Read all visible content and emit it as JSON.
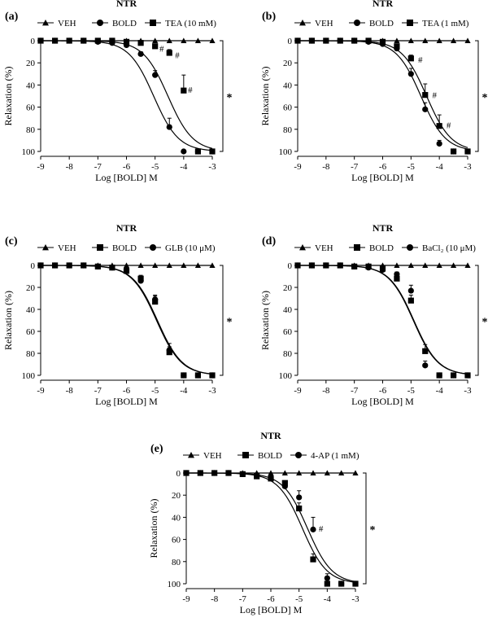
{
  "chart_data": [
    {
      "type": "line",
      "panel_label": "(a)",
      "title": "NTR",
      "xlabel": "Log [BOLD] M",
      "ylabel": "Relaxation (%)",
      "xlim": [
        -9,
        -3
      ],
      "ylim": [
        0,
        100
      ],
      "y_inverted": true,
      "xticks": [
        "-9",
        "-8",
        "-7",
        "-6",
        "-5",
        "-4",
        "-3"
      ],
      "yticks": [
        "0",
        "20",
        "40",
        "60",
        "80",
        "100"
      ],
      "series": [
        {
          "name": "VEH",
          "marker": "triangle",
          "x": [
            -9,
            -8.5,
            -8,
            -7.5,
            -7,
            -6.5,
            -6,
            -5.5,
            -5,
            -4.5,
            -4,
            -3.5,
            -3
          ],
          "y": [
            0,
            0,
            0,
            0,
            0,
            0,
            0,
            0,
            0,
            0,
            0,
            0,
            0
          ],
          "ec50": null
        },
        {
          "name": "BOLD",
          "marker": "circle",
          "x": [
            -9,
            -8.5,
            -8,
            -7.5,
            -7,
            -6.5,
            -6,
            -5.5,
            -5,
            -4.5,
            -4,
            -3.5,
            -3
          ],
          "y": [
            0,
            0,
            0,
            0,
            1,
            2,
            4,
            12,
            31,
            78,
            100,
            100,
            100
          ],
          "err": [
            0,
            0,
            0,
            0,
            0,
            0,
            1,
            2,
            4,
            8,
            0,
            0,
            0
          ],
          "ec50": -5.05
        },
        {
          "name": "TEA (10 mM)",
          "marker": "square",
          "x": [
            -9,
            -8.5,
            -8,
            -7.5,
            -7,
            -6.5,
            -6,
            -5.5,
            -5,
            -4.5,
            -4,
            -3.5,
            -3
          ],
          "y": [
            0,
            0,
            0,
            0,
            0,
            0,
            1,
            2,
            5,
            11,
            45,
            100,
            100
          ],
          "err": [
            0,
            0,
            0,
            0,
            0,
            0,
            0,
            1,
            2,
            3,
            14,
            0,
            0
          ],
          "ec50": -4.55
        }
      ],
      "annotations": [
        {
          "text": "#",
          "x": -4.85,
          "y": 7
        },
        {
          "text": "#",
          "x": -4.3,
          "y": 13
        },
        {
          "text": "#",
          "x": -3.85,
          "y": 44
        }
      ],
      "significance": "*"
    },
    {
      "type": "line",
      "panel_label": "(b)",
      "title": "NTR",
      "xlabel": "Log [BOLD] M",
      "ylabel": "Relaxation (%)",
      "xlim": [
        -9,
        -3
      ],
      "ylim": [
        0,
        100
      ],
      "y_inverted": true,
      "xticks": [
        "-9",
        "-8",
        "-7",
        "-6",
        "-5",
        "-4",
        "-3"
      ],
      "yticks": [
        "0",
        "20",
        "40",
        "60",
        "80",
        "100"
      ],
      "series": [
        {
          "name": "VEH",
          "marker": "triangle",
          "x": [
            -9,
            -8.5,
            -8,
            -7.5,
            -7,
            -6.5,
            -6,
            -5.5,
            -5,
            -4.5,
            -4,
            -3.5,
            -3
          ],
          "y": [
            0,
            0,
            0,
            0,
            0,
            0,
            0,
            0,
            0,
            0,
            0,
            0,
            0
          ],
          "ec50": null
        },
        {
          "name": "BOLD",
          "marker": "circle",
          "x": [
            -9,
            -8.5,
            -8,
            -7.5,
            -7,
            -6.5,
            -6,
            -5.5,
            -5,
            -4.5,
            -4,
            -3.5,
            -3
          ],
          "y": [
            0,
            0,
            0,
            0,
            0,
            1,
            3,
            7,
            30,
            62,
            93,
            100,
            100
          ],
          "err": [
            0,
            0,
            0,
            0,
            0,
            0,
            1,
            2,
            5,
            6,
            3,
            0,
            0
          ],
          "ec50": -4.65
        },
        {
          "name": "TEA (1 mM)",
          "marker": "square",
          "x": [
            -9,
            -8.5,
            -8,
            -7.5,
            -7,
            -6.5,
            -6,
            -5.5,
            -5,
            -4.5,
            -4,
            -3.5,
            -3
          ],
          "y": [
            0,
            0,
            0,
            0,
            0,
            0,
            1,
            5,
            16,
            49,
            77,
            100,
            100
          ],
          "err": [
            0,
            0,
            0,
            0,
            0,
            0,
            0,
            2,
            3,
            10,
            10,
            0,
            0
          ],
          "ec50": -4.45
        }
      ],
      "annotations": [
        {
          "text": "#",
          "x": -4.75,
          "y": 17
        },
        {
          "text": "#",
          "x": -4.25,
          "y": 49
        },
        {
          "text": "#",
          "x": -3.75,
          "y": 76
        }
      ],
      "significance": "*"
    },
    {
      "type": "line",
      "panel_label": "(c)",
      "title": "NTR",
      "xlabel": "Log [BOLD] M",
      "ylabel": "Relaxation (%)",
      "xlim": [
        -9,
        -3
      ],
      "ylim": [
        0,
        100
      ],
      "y_inverted": true,
      "xticks": [
        "-9",
        "-8",
        "-7",
        "-6",
        "-5",
        "-4",
        "-3"
      ],
      "yticks": [
        "0",
        "20",
        "40",
        "60",
        "80",
        "100"
      ],
      "series": [
        {
          "name": "VEH",
          "marker": "triangle",
          "x": [
            -9,
            -8.5,
            -8,
            -7.5,
            -7,
            -6.5,
            -6,
            -5.5,
            -5,
            -4.5,
            -4,
            -3.5,
            -3
          ],
          "y": [
            0,
            0,
            0,
            0,
            0,
            0,
            0,
            0,
            0,
            0,
            0,
            0,
            0
          ],
          "ec50": null
        },
        {
          "name": "BOLD",
          "marker": "square",
          "x": [
            -9,
            -8.5,
            -8,
            -7.5,
            -7,
            -6.5,
            -6,
            -5.5,
            -5,
            -4.5,
            -4,
            -3.5,
            -3
          ],
          "y": [
            0,
            0,
            0,
            0,
            1,
            2,
            5,
            12,
            33,
            79,
            100,
            100,
            100
          ],
          "err": [
            0,
            0,
            0,
            0,
            0,
            0,
            1,
            3,
            5,
            5,
            0,
            0,
            0
          ],
          "ec50": -4.95
        },
        {
          "name": "GLB (10 μM)",
          "marker": "circle",
          "x": [
            -9,
            -8.5,
            -8,
            -7.5,
            -7,
            -6.5,
            -6,
            -5.5,
            -5,
            -4.5,
            -4,
            -3.5,
            -3
          ],
          "y": [
            0,
            0,
            0,
            0,
            1,
            2,
            4,
            14,
            31,
            77,
            100,
            100,
            100
          ],
          "err": [
            0,
            0,
            0,
            0,
            0,
            0,
            1,
            3,
            4,
            6,
            0,
            0,
            0
          ],
          "ec50": -4.92
        }
      ],
      "annotations": [],
      "significance": "*"
    },
    {
      "type": "line",
      "panel_label": "(d)",
      "title": "NTR",
      "xlabel": "Log [BOLD] M",
      "ylabel": "Relaxation (%)",
      "xlim": [
        -9,
        -3
      ],
      "ylim": [
        0,
        100
      ],
      "y_inverted": true,
      "xticks": [
        "-9",
        "-8",
        "-7",
        "-6",
        "-5",
        "-4",
        "-3"
      ],
      "yticks": [
        "0",
        "20",
        "40",
        "60",
        "80",
        "100"
      ],
      "series": [
        {
          "name": "VEH",
          "marker": "triangle",
          "x": [
            -9,
            -8.5,
            -8,
            -7.5,
            -7,
            -6.5,
            -6,
            -5.5,
            -5,
            -4.5,
            -4,
            -3.5,
            -3
          ],
          "y": [
            0,
            0,
            0,
            0,
            0,
            0,
            0,
            0,
            0,
            0,
            0,
            0,
            0
          ],
          "ec50": null
        },
        {
          "name": "BOLD",
          "marker": "square",
          "x": [
            -9,
            -8.5,
            -8,
            -7.5,
            -7,
            -6.5,
            -6,
            -5.5,
            -5,
            -4.5,
            -4,
            -3.5,
            -3
          ],
          "y": [
            0,
            0,
            0,
            0,
            1,
            1,
            3,
            12,
            32,
            78,
            100,
            100,
            100
          ],
          "err": [
            0,
            0,
            0,
            0,
            0,
            0,
            1,
            3,
            5,
            6,
            0,
            0,
            0
          ],
          "ec50": -4.92
        },
        {
          "name": "BaCl₂ (10 μM)",
          "marker": "circle",
          "x": [
            -9,
            -8.5,
            -8,
            -7.5,
            -7,
            -6.5,
            -6,
            -5.5,
            -5,
            -4.5,
            -4,
            -3.5,
            -3
          ],
          "y": [
            0,
            0,
            0,
            0,
            1,
            2,
            4,
            8,
            23,
            91,
            100,
            100,
            100
          ],
          "err": [
            0,
            0,
            0,
            0,
            0,
            0,
            1,
            2,
            5,
            4,
            0,
            0,
            0
          ],
          "ec50": -4.9
        }
      ],
      "annotations": [],
      "significance": "*"
    },
    {
      "type": "line",
      "panel_label": "(e)",
      "title": "NTR",
      "xlabel": "Log [BOLD] M",
      "ylabel": "Relaxation (%)",
      "xlim": [
        -9,
        -3
      ],
      "ylim": [
        0,
        100
      ],
      "y_inverted": true,
      "xticks": [
        "-9",
        "-8",
        "-7",
        "-6",
        "-5",
        "-4",
        "-3"
      ],
      "yticks": [
        "0",
        "20",
        "40",
        "60",
        "80",
        "100"
      ],
      "series": [
        {
          "name": "VEH",
          "marker": "triangle",
          "x": [
            -9,
            -8.5,
            -8,
            -7.5,
            -7,
            -6.5,
            -6,
            -5.5,
            -5,
            -4.5,
            -4,
            -3.5,
            -3
          ],
          "y": [
            0,
            0,
            0,
            0,
            0,
            0,
            0,
            0,
            0,
            0,
            0,
            0,
            0
          ],
          "ec50": null
        },
        {
          "name": "BOLD",
          "marker": "square",
          "x": [
            -9,
            -8.5,
            -8,
            -7.5,
            -7,
            -6.5,
            -6,
            -5.5,
            -5,
            -4.5,
            -4,
            -3.5,
            -3
          ],
          "y": [
            0,
            0,
            0,
            0,
            1,
            3,
            5,
            9,
            32,
            78,
            100,
            100,
            100
          ],
          "err": [
            0,
            0,
            0,
            0,
            0,
            0,
            1,
            2,
            5,
            5,
            0,
            0,
            0
          ],
          "ec50": -4.88
        },
        {
          "name": "4-AP (1 mM)",
          "marker": "circle",
          "x": [
            -9,
            -8.5,
            -8,
            -7.5,
            -7,
            -6.5,
            -6,
            -5.5,
            -5,
            -4.5,
            -4,
            -3.5,
            -3
          ],
          "y": [
            0,
            0,
            0,
            0,
            1,
            2,
            4,
            12,
            22,
            51,
            95,
            100,
            100
          ],
          "err": [
            0,
            0,
            0,
            0,
            0,
            0,
            1,
            2,
            6,
            11,
            4,
            0,
            0
          ],
          "ec50": -4.7
        }
      ],
      "annotations": [
        {
          "text": "#",
          "x": -4.3,
          "y": 50
        }
      ],
      "significance": "*"
    }
  ]
}
